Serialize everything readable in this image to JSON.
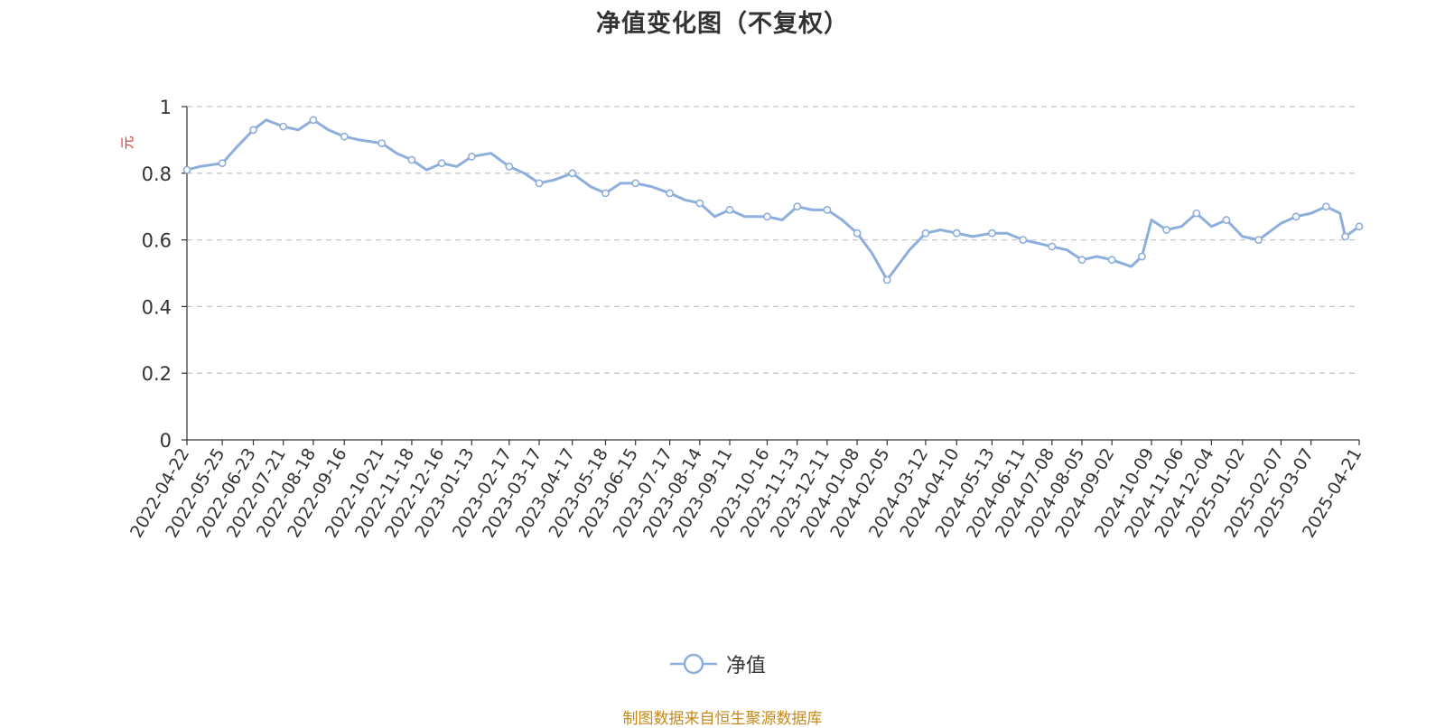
{
  "chart_data": {
    "type": "line",
    "title": "净值变化图（不复权）",
    "ylabel": "元",
    "xlabel": "",
    "ylim": [
      0,
      1
    ],
    "yticks": [
      "0",
      "0.2",
      "0.4",
      "0.6",
      "0.8",
      "1"
    ],
    "grid": true,
    "legend_position": "bottom",
    "x_tick_labels": [
      "2022-04-22",
      "2022-05-25",
      "2022-06-23",
      "2022-07-21",
      "2022-08-18",
      "2022-09-16",
      "2022-10-21",
      "2022-11-18",
      "2022-12-16",
      "2023-01-13",
      "2023-02-17",
      "2023-03-17",
      "2023-04-17",
      "2023-05-18",
      "2023-06-15",
      "2023-07-17",
      "2023-08-14",
      "2023-09-11",
      "2023-10-16",
      "2023-11-13",
      "2023-12-11",
      "2024-01-08",
      "2024-02-05",
      "2024-03-12",
      "2024-04-10",
      "2024-05-13",
      "2024-06-11",
      "2024-07-08",
      "2024-08-05",
      "2024-09-02",
      "2024-10-09",
      "2024-11-06",
      "2024-12-04",
      "2025-01-02",
      "2025-02-07",
      "2025-03-07",
      "2025-04-21"
    ],
    "series": [
      {
        "name": "净值",
        "color": "#8eaedc",
        "x": [
          "2022-04-22",
          "2022-05-04",
          "2022-05-25",
          "2022-06-08",
          "2022-06-23",
          "2022-07-05",
          "2022-07-21",
          "2022-08-04",
          "2022-08-18",
          "2022-09-01",
          "2022-09-16",
          "2022-09-30",
          "2022-10-21",
          "2022-11-04",
          "2022-11-18",
          "2022-12-02",
          "2022-12-16",
          "2022-12-30",
          "2023-01-13",
          "2023-01-31",
          "2023-02-17",
          "2023-03-03",
          "2023-03-17",
          "2023-03-31",
          "2023-04-17",
          "2023-05-04",
          "2023-05-18",
          "2023-06-01",
          "2023-06-15",
          "2023-06-30",
          "2023-07-17",
          "2023-07-31",
          "2023-08-14",
          "2023-08-28",
          "2023-09-11",
          "2023-09-25",
          "2023-10-16",
          "2023-10-30",
          "2023-11-13",
          "2023-11-27",
          "2023-12-11",
          "2023-12-25",
          "2024-01-08",
          "2024-01-22",
          "2024-02-05",
          "2024-02-26",
          "2024-03-12",
          "2024-03-26",
          "2024-04-10",
          "2024-04-25",
          "2024-05-13",
          "2024-05-27",
          "2024-06-11",
          "2024-06-25",
          "2024-07-08",
          "2024-07-22",
          "2024-08-05",
          "2024-08-19",
          "2024-09-02",
          "2024-09-20",
          "2024-09-30",
          "2024-10-09",
          "2024-10-23",
          "2024-11-06",
          "2024-11-20",
          "2024-12-04",
          "2024-12-18",
          "2025-01-02",
          "2025-01-17",
          "2025-02-07",
          "2025-02-21",
          "2025-03-07",
          "2025-03-21",
          "2025-04-03",
          "2025-04-08",
          "2025-04-21"
        ],
        "values": [
          0.81,
          0.82,
          0.83,
          0.88,
          0.93,
          0.96,
          0.94,
          0.93,
          0.96,
          0.93,
          0.91,
          0.9,
          0.89,
          0.86,
          0.84,
          0.81,
          0.83,
          0.82,
          0.85,
          0.86,
          0.82,
          0.8,
          0.77,
          0.78,
          0.8,
          0.76,
          0.74,
          0.77,
          0.77,
          0.76,
          0.74,
          0.72,
          0.71,
          0.67,
          0.69,
          0.67,
          0.67,
          0.66,
          0.7,
          0.69,
          0.69,
          0.66,
          0.62,
          0.56,
          0.48,
          0.57,
          0.62,
          0.63,
          0.62,
          0.61,
          0.62,
          0.62,
          0.6,
          0.59,
          0.58,
          0.57,
          0.54,
          0.55,
          0.54,
          0.52,
          0.55,
          0.66,
          0.63,
          0.64,
          0.68,
          0.64,
          0.66,
          0.61,
          0.6,
          0.65,
          0.67,
          0.68,
          0.7,
          0.68,
          0.61,
          0.64
        ]
      }
    ]
  },
  "source_note": "制图数据来自恒生聚源数据库"
}
